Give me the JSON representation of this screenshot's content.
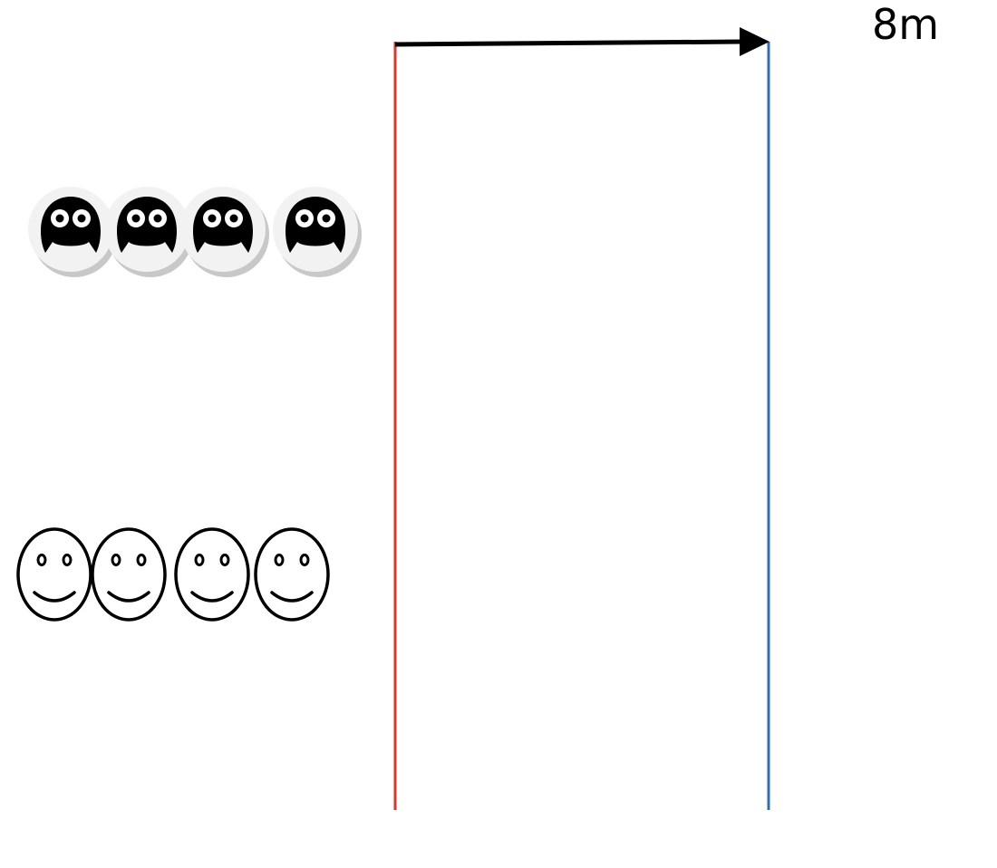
{
  "diagram": {
    "distance_label": "8m",
    "colors": {
      "start_line": "#e0342c",
      "finish_line": "#2f6fb8",
      "arrow": "#000000",
      "owl_face": "#000000",
      "owl_badge": "#f2f2f2",
      "owl_badge_shadow": "#c8c8c8",
      "smiley_stroke": "#000000"
    },
    "icons": {
      "top_row": "owl-badge-icon",
      "bottom_row": "smiley-face-icon"
    },
    "top_row_count": 4,
    "bottom_row_count": 4
  }
}
